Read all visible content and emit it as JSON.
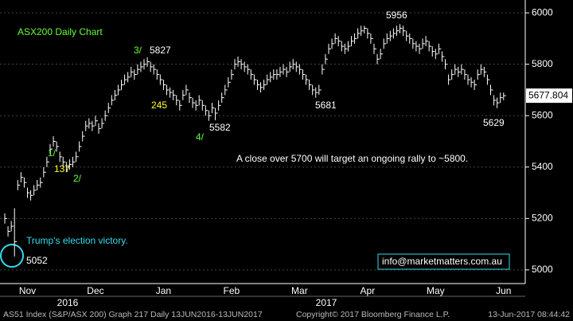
{
  "chart_data": {
    "type": "ohlc",
    "title": "ASX200 Daily Chart",
    "color": "#ffffff",
    "close": [
      5200,
      5150,
      5170,
      5110,
      5330,
      5360,
      5340,
      5300,
      5290,
      5310,
      5330,
      5340,
      5380,
      5420,
      5470,
      5500,
      5480,
      5440,
      5420,
      5400,
      5410,
      5420,
      5440,
      5480,
      5520,
      5560,
      5570,
      5560,
      5580,
      5550,
      5570,
      5600,
      5630,
      5660,
      5680,
      5700,
      5720,
      5740,
      5750,
      5770,
      5760,
      5780,
      5790,
      5800,
      5810,
      5790,
      5780,
      5760,
      5740,
      5720,
      5700,
      5690,
      5680,
      5660,
      5640,
      5680,
      5700,
      5670,
      5650,
      5640,
      5660,
      5640,
      5620,
      5600,
      5630,
      5610,
      5640,
      5670,
      5700,
      5730,
      5760,
      5800,
      5810,
      5800,
      5790,
      5780,
      5760,
      5740,
      5720,
      5710,
      5720,
      5740,
      5750,
      5760,
      5760,
      5770,
      5780,
      5770,
      5790,
      5800,
      5790,
      5780,
      5760,
      5740,
      5720,
      5700,
      5690,
      5700,
      5780,
      5820,
      5860,
      5880,
      5900,
      5890,
      5870,
      5860,
      5870,
      5890,
      5900,
      5920,
      5930,
      5940,
      5920,
      5900,
      5860,
      5820,
      5840,
      5880,
      5900,
      5910,
      5920,
      5930,
      5940,
      5930,
      5910,
      5900,
      5880,
      5870,
      5860,
      5880,
      5890,
      5870,
      5850,
      5840,
      5860,
      5830,
      5800,
      5740,
      5760,
      5780,
      5770,
      5780,
      5760,
      5740,
      5730,
      5720,
      5760,
      5780,
      5770,
      5740,
      5700,
      5660,
      5650,
      5670,
      5677.804
    ],
    "high": [
      5220,
      5170,
      5190,
      5240,
      5350,
      5380,
      5360,
      5320,
      5310,
      5330,
      5350,
      5360,
      5400,
      5440,
      5490,
      5520,
      5500,
      5460,
      5440,
      5420,
      5430,
      5440,
      5460,
      5500,
      5540,
      5580,
      5590,
      5580,
      5600,
      5570,
      5590,
      5620,
      5650,
      5680,
      5700,
      5720,
      5740,
      5760,
      5770,
      5790,
      5780,
      5800,
      5810,
      5820,
      5827,
      5810,
      5800,
      5780,
      5760,
      5740,
      5720,
      5710,
      5700,
      5680,
      5660,
      5700,
      5720,
      5690,
      5670,
      5660,
      5680,
      5660,
      5640,
      5620,
      5650,
      5630,
      5660,
      5690,
      5720,
      5750,
      5780,
      5820,
      5830,
      5820,
      5810,
      5800,
      5780,
      5760,
      5740,
      5730,
      5740,
      5760,
      5770,
      5780,
      5780,
      5790,
      5800,
      5790,
      5810,
      5820,
      5810,
      5800,
      5780,
      5760,
      5740,
      5720,
      5710,
      5720,
      5800,
      5840,
      5880,
      5900,
      5920,
      5910,
      5890,
      5880,
      5890,
      5910,
      5920,
      5940,
      5950,
      5950,
      5940,
      5920,
      5880,
      5840,
      5860,
      5900,
      5920,
      5930,
      5940,
      5950,
      5956,
      5950,
      5930,
      5920,
      5900,
      5890,
      5880,
      5900,
      5910,
      5890,
      5870,
      5860,
      5880,
      5850,
      5820,
      5760,
      5780,
      5800,
      5790,
      5800,
      5780,
      5760,
      5750,
      5740,
      5780,
      5800,
      5790,
      5760,
      5720,
      5680,
      5670,
      5690,
      5690
    ],
    "low": [
      5180,
      5130,
      5150,
      5052,
      5310,
      5340,
      5320,
      5280,
      5270,
      5290,
      5310,
      5320,
      5360,
      5400,
      5450,
      5480,
      5460,
      5420,
      5400,
      5380,
      5390,
      5400,
      5420,
      5460,
      5500,
      5540,
      5550,
      5540,
      5560,
      5530,
      5550,
      5580,
      5610,
      5640,
      5660,
      5680,
      5700,
      5720,
      5730,
      5750,
      5740,
      5760,
      5770,
      5780,
      5790,
      5770,
      5760,
      5740,
      5720,
      5700,
      5680,
      5670,
      5660,
      5640,
      5620,
      5660,
      5680,
      5650,
      5630,
      5620,
      5640,
      5620,
      5600,
      5580,
      5610,
      5582,
      5620,
      5650,
      5680,
      5710,
      5740,
      5780,
      5790,
      5780,
      5770,
      5760,
      5740,
      5720,
      5700,
      5690,
      5700,
      5720,
      5730,
      5740,
      5740,
      5750,
      5760,
      5750,
      5770,
      5780,
      5770,
      5760,
      5740,
      5720,
      5700,
      5680,
      5670,
      5681,
      5760,
      5800,
      5840,
      5860,
      5880,
      5870,
      5850,
      5840,
      5850,
      5870,
      5880,
      5900,
      5910,
      5920,
      5900,
      5880,
      5840,
      5800,
      5820,
      5860,
      5880,
      5890,
      5900,
      5910,
      5920,
      5910,
      5890,
      5880,
      5860,
      5850,
      5840,
      5860,
      5870,
      5850,
      5830,
      5820,
      5840,
      5810,
      5780,
      5720,
      5740,
      5760,
      5750,
      5760,
      5740,
      5720,
      5710,
      5700,
      5740,
      5760,
      5750,
      5720,
      5680,
      5640,
      5629,
      5650,
      5660
    ],
    "last_label": "5677.804",
    "ylim": [
      4950,
      6050
    ],
    "yticks": [
      5000,
      5200,
      5400,
      5600,
      5800,
      6000
    ],
    "xticks": [
      {
        "value": 7,
        "label": "Nov"
      },
      {
        "value": 28,
        "label": "Dec"
      },
      {
        "value": 49,
        "label": "Jan"
      },
      {
        "value": 70,
        "label": "Feb"
      },
      {
        "value": 91,
        "label": "Mar"
      },
      {
        "value": 112,
        "label": "Apr"
      },
      {
        "value": 133,
        "label": "May"
      },
      {
        "value": 154,
        "label": "Jun"
      }
    ],
    "years": [
      "2016",
      "2017"
    ],
    "grid": true,
    "annotations": [
      {
        "text": "3/",
        "color": "#66ff33"
      },
      {
        "text": "5827",
        "color": "#ffffff"
      },
      {
        "text": "245",
        "color": "#ffff33"
      },
      {
        "text": "5582",
        "color": "#ffffff"
      },
      {
        "text": "4/",
        "color": "#66ff33"
      },
      {
        "text": "1/",
        "color": "#66ff33"
      },
      {
        "text": "137",
        "color": "#ffff33"
      },
      {
        "text": "2/",
        "color": "#66ff33"
      },
      {
        "text": "5681",
        "color": "#ffffff"
      },
      {
        "text": "5956",
        "color": "#ffffff"
      },
      {
        "text": "5629",
        "color": "#ffffff"
      },
      {
        "text": "A close over 5700 will target an ongoing rally to ~5800.",
        "color": "#ffffff"
      },
      {
        "text": "Trump's election victory.",
        "color": "#33ddee"
      },
      {
        "text": "5052",
        "color": "#ffffff"
      }
    ],
    "contact": "info@marketmatters.com.au",
    "footer": [
      "AS51 Index (S&P/ASX 200) Graph 217  Daily 13JUN2016-13JUN2017",
      "Copyright© 2017 Bloomberg Finance L.P.",
      "13-Jun-2017 08:44:42"
    ]
  }
}
